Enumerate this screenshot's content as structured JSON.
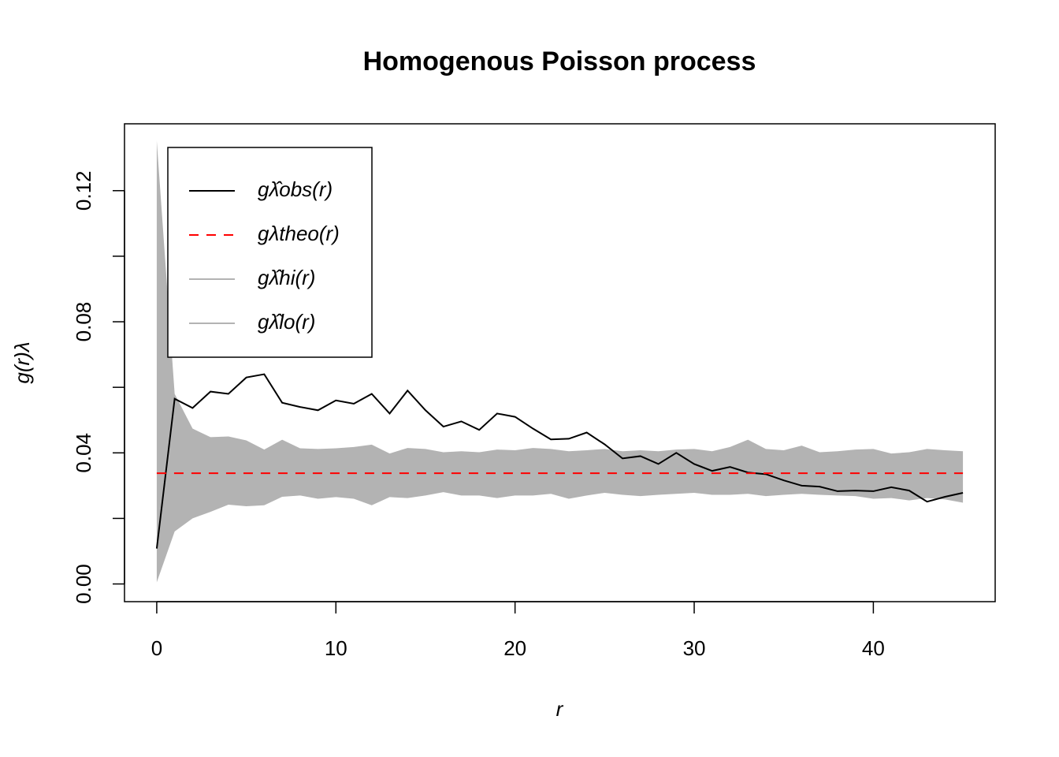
{
  "chart_data": {
    "type": "line",
    "title": "Homogenous Poisson process",
    "x_label": "r",
    "y_label": "g(r)λ",
    "x": [
      0,
      1,
      2,
      3,
      4,
      5,
      6,
      7,
      8,
      9,
      10,
      11,
      12,
      13,
      14,
      15,
      16,
      17,
      18,
      19,
      20,
      21,
      22,
      23,
      24,
      25,
      26,
      27,
      28,
      29,
      30,
      31,
      32,
      33,
      34,
      35,
      36,
      37,
      38,
      39,
      40,
      41,
      42,
      43,
      44,
      45
    ],
    "series": [
      {
        "name": "gλ̂obs(r)",
        "color": "#000000",
        "dash": false,
        "values": [
          0.0108,
          0.0565,
          0.0537,
          0.0587,
          0.058,
          0.063,
          0.064,
          0.0553,
          0.054,
          0.053,
          0.056,
          0.055,
          0.058,
          0.052,
          0.059,
          0.053,
          0.048,
          0.0496,
          0.047,
          0.052,
          0.051,
          0.0474,
          0.0441,
          0.0443,
          0.0462,
          0.0426,
          0.0383,
          0.039,
          0.0366,
          0.04,
          0.0366,
          0.0345,
          0.0357,
          0.034,
          0.0335,
          0.0316,
          0.03,
          0.0297,
          0.0283,
          0.0285,
          0.0283,
          0.0295,
          0.0285,
          0.0251,
          0.0266,
          0.0278
        ]
      },
      {
        "name": "gλtheo(r)",
        "color": "#ff0000",
        "dash": true,
        "values": [
          0.0338,
          0.0338,
          0.0338,
          0.0338,
          0.0338,
          0.0338,
          0.0338,
          0.0338,
          0.0338,
          0.0338,
          0.0338,
          0.0338,
          0.0338,
          0.0338,
          0.0338,
          0.0338,
          0.0338,
          0.0338,
          0.0338,
          0.0338,
          0.0338,
          0.0338,
          0.0338,
          0.0338,
          0.0338,
          0.0338,
          0.0338,
          0.0338,
          0.0338,
          0.0338,
          0.0338,
          0.0338,
          0.0338,
          0.0338,
          0.0338,
          0.0338,
          0.0338,
          0.0338,
          0.0338,
          0.0338,
          0.0338,
          0.0338,
          0.0338,
          0.0338,
          0.0338,
          0.0338
        ]
      },
      {
        "name": "gλ̂hi(r)",
        "color": "#b3b3b3",
        "dash": false,
        "envelope": "upper",
        "values": [
          0.1353,
          0.058,
          0.0474,
          0.0448,
          0.045,
          0.0438,
          0.041,
          0.044,
          0.0414,
          0.0412,
          0.0414,
          0.0418,
          0.0425,
          0.0398,
          0.0415,
          0.0412,
          0.0402,
          0.0405,
          0.0402,
          0.041,
          0.0408,
          0.0415,
          0.0412,
          0.0405,
          0.0408,
          0.0412,
          0.0405,
          0.0408,
          0.0405,
          0.041,
          0.0412,
          0.0405,
          0.0418,
          0.044,
          0.0412,
          0.0408,
          0.0422,
          0.0402,
          0.0405,
          0.041,
          0.0412,
          0.0398,
          0.0402,
          0.0412,
          0.0408,
          0.0405
        ]
      },
      {
        "name": "gλ̂lo(r)",
        "color": "#b3b3b3",
        "dash": false,
        "envelope": "lower",
        "values": [
          0.0005,
          0.016,
          0.02,
          0.022,
          0.0242,
          0.0237,
          0.024,
          0.0266,
          0.027,
          0.026,
          0.0265,
          0.026,
          0.024,
          0.0265,
          0.0262,
          0.027,
          0.028,
          0.027,
          0.027,
          0.0262,
          0.027,
          0.027,
          0.0275,
          0.026,
          0.027,
          0.0278,
          0.0272,
          0.0268,
          0.0272,
          0.0275,
          0.0278,
          0.0272,
          0.0272,
          0.0275,
          0.0268,
          0.0272,
          0.0275,
          0.0272,
          0.027,
          0.0268,
          0.026,
          0.0262,
          0.0255,
          0.0262,
          0.0258,
          0.0248
        ]
      }
    ],
    "xlim": [
      -1.8,
      46.8
    ],
    "ylim": [
      -0.0054,
      0.1404
    ],
    "xticks": [
      0,
      10,
      20,
      30,
      40
    ],
    "yticks": [
      {
        "value": 0,
        "label": "0.00"
      },
      {
        "value": 0.02,
        "label": null
      },
      {
        "value": 0.04,
        "label": "0.04"
      },
      {
        "value": 0.06,
        "label": null
      },
      {
        "value": 0.08,
        "label": "0.08"
      },
      {
        "value": 0.1,
        "label": null
      },
      {
        "value": 0.12,
        "label": "0.12"
      }
    ],
    "grid": false,
    "legend": "topleft"
  }
}
